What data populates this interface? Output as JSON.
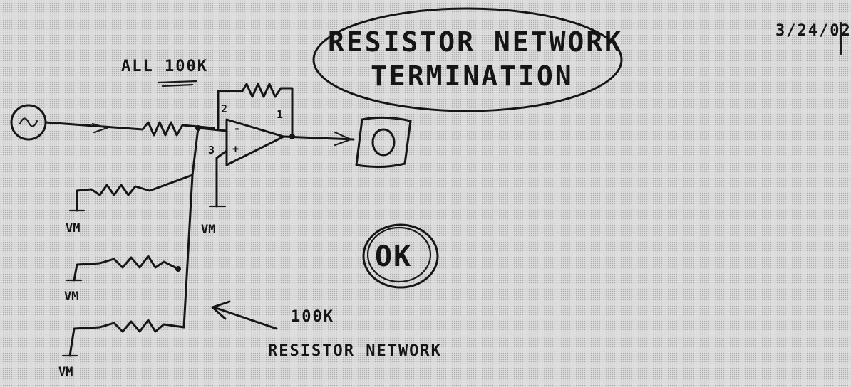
{
  "title": {
    "line1": "RESISTOR NETWORK",
    "line2": "TERMINATION"
  },
  "date": "3/24/02",
  "source_label": "ALL 100K",
  "opamp_pins": {
    "inverting": "2",
    "non_inverting": "3",
    "output": "1",
    "minus_sign": "-",
    "plus_sign": "+"
  },
  "ground_labels": [
    "VM",
    "VM",
    "VM",
    "VM"
  ],
  "network_label": {
    "value": "100K",
    "name": "RESISTOR NETWORK"
  },
  "ok_stamp": "OK"
}
